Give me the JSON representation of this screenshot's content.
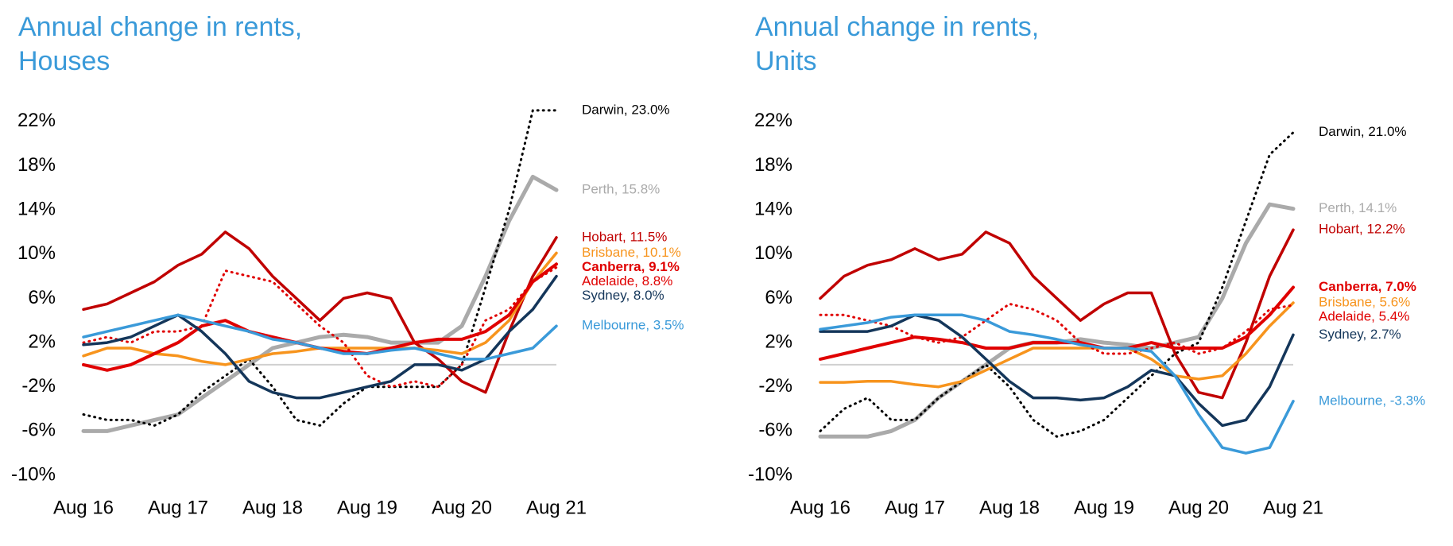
{
  "chart_data": [
    {
      "type": "line",
      "title": "Annual change in rents,",
      "subtitle": "Houses",
      "categories": [
        "Aug 16",
        null,
        null,
        null,
        "Aug 17",
        null,
        null,
        null,
        "Aug 18",
        null,
        null,
        null,
        "Aug 19",
        null,
        null,
        null,
        "Aug 20",
        null,
        null,
        null,
        "Aug 21"
      ],
      "ylim": [
        -10,
        24
      ],
      "yticks": [
        {
          "value": 22,
          "label": "22%"
        },
        {
          "value": 18,
          "label": "18%"
        },
        {
          "value": 14,
          "label": "14%"
        },
        {
          "value": 10,
          "label": "10%"
        },
        {
          "value": 6,
          "label": "6%"
        },
        {
          "value": 2,
          "label": "2%"
        },
        {
          "value": -2,
          "label": "-2%"
        },
        {
          "value": -6,
          "label": "-6%"
        },
        {
          "value": -10,
          "label": "-10%"
        }
      ],
      "series": [
        {
          "name": "Darwin, 23.0%",
          "color": "#000000",
          "style": "dotted",
          "values": [
            -4.5,
            -5,
            -5,
            -5.5,
            -4.5,
            -2.5,
            -1,
            0.5,
            -2,
            -5,
            -5.5,
            -3.5,
            -2,
            -2,
            -2,
            -2,
            0,
            7,
            14,
            23,
            23.0
          ]
        },
        {
          "name": "Perth, 15.8%",
          "color": "#aaaaaa",
          "style": "wide",
          "values": [
            -6,
            -6,
            -5.5,
            -5,
            -4.5,
            -3,
            -1.5,
            0,
            1.5,
            2,
            2.5,
            2.7,
            2.5,
            2,
            2,
            2,
            3.5,
            8,
            13,
            17,
            15.8
          ]
        },
        {
          "name": "Hobart, 11.5%",
          "color": "#c00000",
          "style": "solid",
          "values": [
            5,
            5.5,
            6.5,
            7.5,
            9,
            10,
            12,
            10.5,
            8,
            6,
            4,
            6,
            6.5,
            6,
            2,
            0.5,
            -1.5,
            -2.5,
            3,
            8,
            11.5
          ]
        },
        {
          "name": "Brisbane, 10.1%",
          "color": "#f7941d",
          "style": "solid",
          "values": [
            0.8,
            1.5,
            1.5,
            1,
            0.8,
            0.3,
            0,
            0.5,
            1,
            1.2,
            1.5,
            1.5,
            1.5,
            1.5,
            1.5,
            1.3,
            1,
            2,
            4,
            7.5,
            10.1
          ]
        },
        {
          "name": "Canberra, 9.1%",
          "color": "#e00000",
          "style": "solid",
          "bold": true,
          "values": [
            0,
            -0.5,
            0,
            1,
            2,
            3.5,
            4,
            3,
            2.5,
            2,
            1.5,
            1.2,
            1,
            1.5,
            2,
            2.3,
            2.3,
            3,
            4.5,
            7.5,
            9.1
          ]
        },
        {
          "name": "Adelaide, 8.8%",
          "color": "#e00000",
          "style": "dotted",
          "values": [
            2,
            2.5,
            2,
            3,
            3,
            3.5,
            8.5,
            8,
            7.5,
            5.5,
            3.5,
            2,
            -1,
            -2,
            -1.5,
            -2,
            0,
            4,
            5,
            7.5,
            8.8
          ]
        },
        {
          "name": "Sydney, 8.0%",
          "color": "#14365a",
          "style": "solid",
          "values": [
            1.8,
            2,
            2.5,
            3.5,
            4.5,
            3,
            1,
            -1.5,
            -2.5,
            -3,
            -3,
            -2.5,
            -2,
            -1.5,
            0,
            0,
            -0.5,
            0.5,
            3,
            5,
            8.0
          ]
        },
        {
          "name": "Melbourne, 3.5%",
          "color": "#3a9ad9",
          "style": "solid",
          "values": [
            2.5,
            3,
            3.5,
            4,
            4.5,
            4,
            3.5,
            3,
            2.3,
            2,
            1.5,
            1,
            1,
            1.3,
            1.5,
            1,
            0.5,
            0.5,
            1,
            1.5,
            3.5
          ]
        }
      ]
    },
    {
      "type": "line",
      "title": "Annual change in rents,",
      "subtitle": "Units",
      "categories": [
        "Aug 16",
        null,
        null,
        null,
        "Aug 17",
        null,
        null,
        null,
        "Aug 18",
        null,
        null,
        null,
        "Aug 19",
        null,
        null,
        null,
        "Aug 20",
        null,
        null,
        null,
        "Aug 21"
      ],
      "ylim": [
        -10,
        24
      ],
      "yticks": [
        {
          "value": 22,
          "label": "22%"
        },
        {
          "value": 18,
          "label": "18%"
        },
        {
          "value": 14,
          "label": "14%"
        },
        {
          "value": 10,
          "label": "10%"
        },
        {
          "value": 6,
          "label": "6%"
        },
        {
          "value": 2,
          "label": "2%"
        },
        {
          "value": -2,
          "label": "-2%"
        },
        {
          "value": -6,
          "label": "-6%"
        },
        {
          "value": -10,
          "label": "-10%"
        }
      ],
      "series": [
        {
          "name": "Darwin, 21.0%",
          "color": "#000000",
          "style": "dotted",
          "values": [
            -6,
            -4,
            -3,
            -5,
            -5,
            -3,
            -1.5,
            0,
            -2,
            -5,
            -6.5,
            -6,
            -5,
            -3,
            -1,
            1,
            2,
            7,
            13,
            19,
            21.0
          ]
        },
        {
          "name": "Perth, 14.1%",
          "color": "#aaaaaa",
          "style": "wide",
          "values": [
            -6.5,
            -6.5,
            -6.5,
            -6,
            -5,
            -3,
            -1.5,
            0,
            1.5,
            2,
            2,
            2.3,
            2,
            1.8,
            1.5,
            2,
            2.5,
            6,
            11,
            14.5,
            14.1
          ]
        },
        {
          "name": "Hobart, 12.2%",
          "color": "#c00000",
          "style": "solid",
          "values": [
            6,
            8,
            9,
            9.5,
            10.5,
            9.5,
            10,
            12,
            11,
            8,
            6,
            4,
            5.5,
            6.5,
            6.5,
            1,
            -2.5,
            -3,
            2,
            8,
            12.2
          ]
        },
        {
          "name": "Canberra, 7.0%",
          "color": "#e00000",
          "style": "solid",
          "bold": true,
          "values": [
            0.5,
            1,
            1.5,
            2,
            2.5,
            2.3,
            2,
            1.5,
            1.5,
            2,
            2,
            2,
            1.5,
            1.5,
            2,
            1.5,
            1.5,
            1.5,
            2.5,
            4.5,
            7.0
          ]
        },
        {
          "name": "Brisbane, 5.6%",
          "color": "#f7941d",
          "style": "solid",
          "values": [
            -1.6,
            -1.6,
            -1.5,
            -1.5,
            -1.8,
            -2,
            -1.5,
            -0.5,
            0.5,
            1.5,
            1.5,
            1.5,
            1.5,
            1.5,
            0.5,
            -1,
            -1.3,
            -1,
            1,
            3.5,
            5.6
          ]
        },
        {
          "name": "Adelaide, 5.4%",
          "color": "#e00000",
          "style": "dotted",
          "values": [
            4.5,
            4.5,
            4,
            3.5,
            2.5,
            2,
            2.5,
            4,
            5.5,
            5,
            4,
            2,
            1,
            1,
            1.5,
            2,
            1,
            1.5,
            3,
            5,
            5.4
          ]
        },
        {
          "name": "Sydney, 2.7%",
          "color": "#14365a",
          "style": "solid",
          "values": [
            3,
            3,
            3,
            3.5,
            4.5,
            4,
            2.5,
            0.5,
            -1.5,
            -3,
            -3,
            -3.2,
            -3,
            -2,
            -0.5,
            -1,
            -3.5,
            -5.5,
            -5,
            -2,
            2.7
          ]
        },
        {
          "name": "Melbourne, -3.3%",
          "color": "#3a9ad9",
          "style": "solid",
          "values": [
            3.2,
            3.5,
            3.8,
            4.3,
            4.5,
            4.5,
            4.5,
            4,
            3,
            2.7,
            2.3,
            1.8,
            1.5,
            1.5,
            1.2,
            -1,
            -4.5,
            -7.5,
            -8,
            -7.5,
            -3.3
          ]
        }
      ]
    }
  ]
}
